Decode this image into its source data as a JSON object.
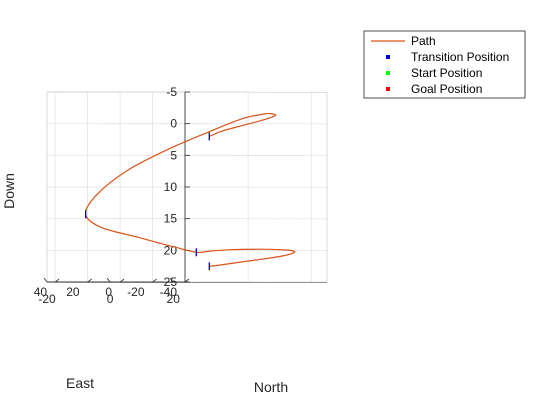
{
  "chart_data": {
    "type": "line",
    "projection": "3d",
    "axes": {
      "north": {
        "label": "North",
        "range": [
          -20,
          25
        ],
        "ticks": [
          -20,
          0,
          20
        ]
      },
      "east": {
        "label": "East",
        "range": [
          -40,
          45
        ],
        "ticks": [
          -40,
          -20,
          0,
          20,
          40
        ]
      },
      "down": {
        "label": "Down",
        "range": [
          -5,
          25
        ],
        "ticks": [
          -5,
          0,
          5,
          10,
          15,
          20,
          25
        ]
      }
    },
    "grid": true,
    "legend": {
      "placement": "top-right",
      "entries": [
        {
          "label": "Path",
          "marker": "line",
          "color": "#d95319"
        },
        {
          "label": "Transition Position",
          "marker": "dot",
          "color": "#0000cc"
        },
        {
          "label": "Start Position",
          "marker": "dot",
          "color": "#00ff00"
        },
        {
          "label": "Goal Position",
          "marker": "dot",
          "color": "#ff0000"
        }
      ]
    },
    "series": [
      {
        "name": "Path",
        "color": "#d95319",
        "points": [
          {
            "north": -1.5,
            "east": -19,
            "down": 22.5
          },
          {
            "north": 2.5,
            "east": -18,
            "down": 22.3
          },
          {
            "north": 10,
            "east": -17,
            "down": 21.8
          },
          {
            "north": 17,
            "east": -17.5,
            "down": 21.3
          },
          {
            "north": 22,
            "east": -19.5,
            "down": 20.8
          },
          {
            "north": 23.5,
            "east": -22,
            "down": 20.4
          },
          {
            "north": 22.5,
            "east": -24.5,
            "down": 20.1
          },
          {
            "north": 18,
            "east": -26.5,
            "down": 19.9
          },
          {
            "north": 10,
            "east": -27.5,
            "down": 19.8
          },
          {
            "north": 0,
            "east": -28,
            "down": 19.9
          },
          {
            "north": -6,
            "east": -28.5,
            "down": 20.1
          },
          {
            "north": -10.5,
            "east": -28.5,
            "down": 20.3
          },
          {
            "north": -11.5,
            "east": -16,
            "down": 19.4
          },
          {
            "north": -13,
            "east": 3,
            "down": 17.9
          },
          {
            "north": -14.5,
            "east": 22,
            "down": 16.4
          },
          {
            "north": -16.5,
            "east": 28,
            "down": 14.3
          },
          {
            "north": -14,
            "east": 26,
            "down": 11.2
          },
          {
            "north": -8,
            "east": 19,
            "down": 7.4
          },
          {
            "north": 0,
            "east": 9,
            "down": 4
          },
          {
            "north": 8,
            "east": -1,
            "down": 1.2
          },
          {
            "north": 14,
            "east": -9,
            "down": -0.8
          },
          {
            "north": 18.5,
            "east": -15,
            "down": -1.6
          },
          {
            "north": 20,
            "east": -17.5,
            "down": -1.5
          },
          {
            "north": 19,
            "east": -19,
            "down": -1.2
          },
          {
            "north": 14.5,
            "east": -19.5,
            "down": -0.5
          },
          {
            "north": 8,
            "east": -19,
            "down": 0.4
          },
          {
            "north": 2.5,
            "east": -18.5,
            "down": 1.2
          },
          {
            "north": -1.5,
            "east": -19,
            "down": 2
          }
        ]
      }
    ],
    "markers": [
      {
        "type": "Transition Position",
        "north": -1.5,
        "east": -19,
        "down": 22.5,
        "color": "#0000cc"
      },
      {
        "type": "Transition Position",
        "north": -10.5,
        "east": -28.5,
        "down": 20.3,
        "color": "#0000cc"
      },
      {
        "type": "Transition Position",
        "north": -16.5,
        "east": 28,
        "down": 14.3,
        "color": "#0000cc"
      },
      {
        "type": "Transition Position",
        "north": -1.5,
        "east": -19,
        "down": 2,
        "color": "#0000cc"
      }
    ]
  }
}
